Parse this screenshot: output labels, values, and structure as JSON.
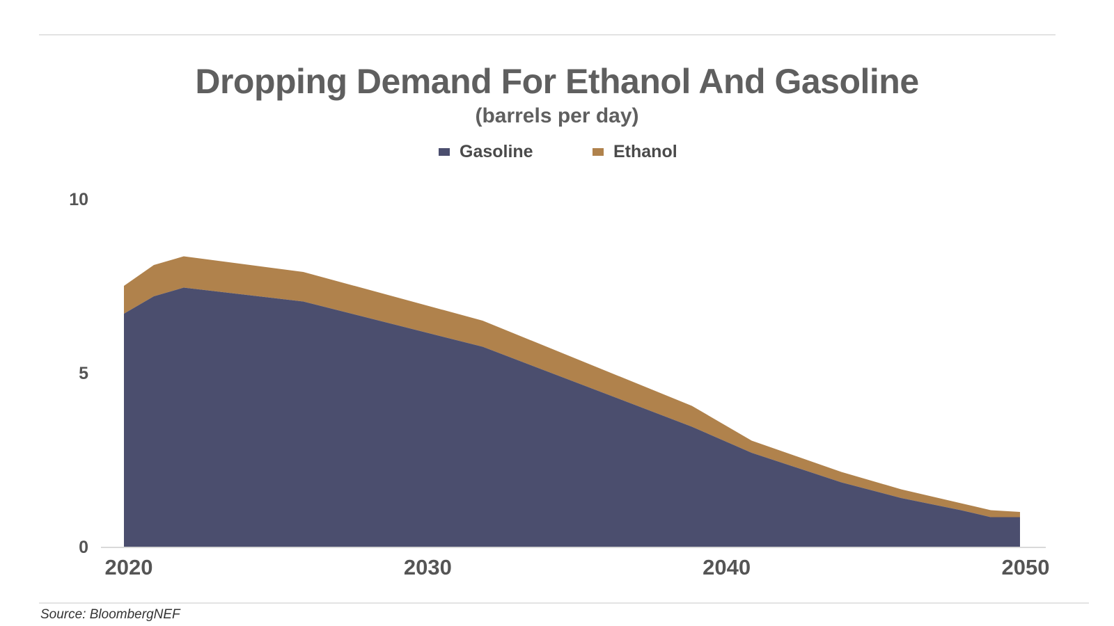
{
  "chart_data": {
    "type": "area",
    "stacked": true,
    "title": "Dropping Demand For Ethanol And Gasoline",
    "subtitle": "(barrels per day)",
    "xlabel": "",
    "ylabel": "",
    "x": [
      2020,
      2021,
      2022,
      2026,
      2032,
      2039,
      2041,
      2044,
      2046,
      2048,
      2049,
      2050
    ],
    "series": [
      {
        "name": "Gasoline",
        "color": "#4b4e6e",
        "values": [
          6.7,
          7.2,
          7.45,
          7.05,
          5.75,
          3.45,
          2.7,
          1.85,
          1.4,
          1.05,
          0.85,
          0.85
        ]
      },
      {
        "name": "Ethanol",
        "color": "#b0824c",
        "values": [
          0.8,
          0.9,
          0.9,
          0.85,
          0.75,
          0.6,
          0.35,
          0.3,
          0.25,
          0.2,
          0.2,
          0.15
        ]
      }
    ],
    "xlim": [
      2020,
      2050
    ],
    "ylim": [
      0,
      10
    ],
    "x_ticks": [
      "2020",
      "2030",
      "2040",
      "2050"
    ],
    "y_ticks": [
      "0",
      "5",
      "10"
    ],
    "grid": false,
    "legend_position": "top-center"
  },
  "source": "Source: BloombergNEF"
}
